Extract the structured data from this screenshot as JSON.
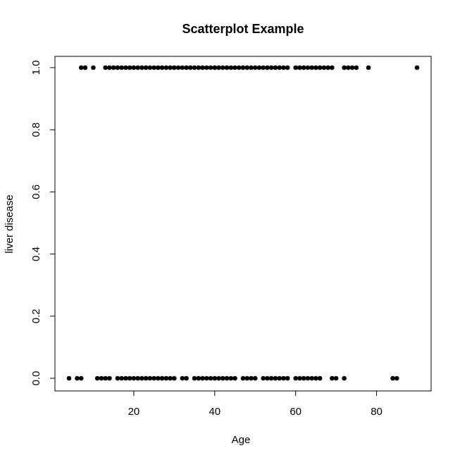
{
  "chart_data": {
    "type": "scatter",
    "title": "Scatterplot Example",
    "xlabel": "Age",
    "ylabel": "liver disease",
    "xlim": [
      4,
      90
    ],
    "ylim": [
      0.0,
      1.0
    ],
    "x_ticks": [
      20,
      40,
      60,
      80
    ],
    "y_ticks": [
      0.0,
      0.2,
      0.4,
      0.6,
      0.8,
      1.0
    ],
    "y_tick_labels": [
      "0.0",
      "0.2",
      "0.4",
      "0.6",
      "0.8",
      "1.0"
    ],
    "grid": false,
    "marker_color": "#000000",
    "points": [
      {
        "x": 7,
        "y": 1
      },
      {
        "x": 8,
        "y": 1
      },
      {
        "x": 10,
        "y": 1
      },
      {
        "x": 13,
        "y": 1
      },
      {
        "x": 14,
        "y": 1
      },
      {
        "x": 15,
        "y": 1
      },
      {
        "x": 16,
        "y": 1
      },
      {
        "x": 17,
        "y": 1
      },
      {
        "x": 18,
        "y": 1
      },
      {
        "x": 19,
        "y": 1
      },
      {
        "x": 20,
        "y": 1
      },
      {
        "x": 21,
        "y": 1
      },
      {
        "x": 22,
        "y": 1
      },
      {
        "x": 23,
        "y": 1
      },
      {
        "x": 24,
        "y": 1
      },
      {
        "x": 25,
        "y": 1
      },
      {
        "x": 26,
        "y": 1
      },
      {
        "x": 27,
        "y": 1
      },
      {
        "x": 28,
        "y": 1
      },
      {
        "x": 29,
        "y": 1
      },
      {
        "x": 30,
        "y": 1
      },
      {
        "x": 31,
        "y": 1
      },
      {
        "x": 32,
        "y": 1
      },
      {
        "x": 33,
        "y": 1
      },
      {
        "x": 34,
        "y": 1
      },
      {
        "x": 35,
        "y": 1
      },
      {
        "x": 36,
        "y": 1
      },
      {
        "x": 37,
        "y": 1
      },
      {
        "x": 38,
        "y": 1
      },
      {
        "x": 39,
        "y": 1
      },
      {
        "x": 40,
        "y": 1
      },
      {
        "x": 41,
        "y": 1
      },
      {
        "x": 42,
        "y": 1
      },
      {
        "x": 43,
        "y": 1
      },
      {
        "x": 44,
        "y": 1
      },
      {
        "x": 45,
        "y": 1
      },
      {
        "x": 46,
        "y": 1
      },
      {
        "x": 47,
        "y": 1
      },
      {
        "x": 48,
        "y": 1
      },
      {
        "x": 49,
        "y": 1
      },
      {
        "x": 50,
        "y": 1
      },
      {
        "x": 51,
        "y": 1
      },
      {
        "x": 52,
        "y": 1
      },
      {
        "x": 53,
        "y": 1
      },
      {
        "x": 54,
        "y": 1
      },
      {
        "x": 55,
        "y": 1
      },
      {
        "x": 56,
        "y": 1
      },
      {
        "x": 57,
        "y": 1
      },
      {
        "x": 58,
        "y": 1
      },
      {
        "x": 60,
        "y": 1
      },
      {
        "x": 61,
        "y": 1
      },
      {
        "x": 62,
        "y": 1
      },
      {
        "x": 63,
        "y": 1
      },
      {
        "x": 64,
        "y": 1
      },
      {
        "x": 65,
        "y": 1
      },
      {
        "x": 66,
        "y": 1
      },
      {
        "x": 67,
        "y": 1
      },
      {
        "x": 68,
        "y": 1
      },
      {
        "x": 69,
        "y": 1
      },
      {
        "x": 72,
        "y": 1
      },
      {
        "x": 73,
        "y": 1
      },
      {
        "x": 74,
        "y": 1
      },
      {
        "x": 75,
        "y": 1
      },
      {
        "x": 78,
        "y": 1
      },
      {
        "x": 90,
        "y": 1
      },
      {
        "x": 4,
        "y": 0
      },
      {
        "x": 6,
        "y": 0
      },
      {
        "x": 7,
        "y": 0
      },
      {
        "x": 11,
        "y": 0
      },
      {
        "x": 12,
        "y": 0
      },
      {
        "x": 13,
        "y": 0
      },
      {
        "x": 14,
        "y": 0
      },
      {
        "x": 16,
        "y": 0
      },
      {
        "x": 17,
        "y": 0
      },
      {
        "x": 18,
        "y": 0
      },
      {
        "x": 19,
        "y": 0
      },
      {
        "x": 20,
        "y": 0
      },
      {
        "x": 21,
        "y": 0
      },
      {
        "x": 22,
        "y": 0
      },
      {
        "x": 23,
        "y": 0
      },
      {
        "x": 24,
        "y": 0
      },
      {
        "x": 25,
        "y": 0
      },
      {
        "x": 26,
        "y": 0
      },
      {
        "x": 27,
        "y": 0
      },
      {
        "x": 28,
        "y": 0
      },
      {
        "x": 29,
        "y": 0
      },
      {
        "x": 30,
        "y": 0
      },
      {
        "x": 32,
        "y": 0
      },
      {
        "x": 33,
        "y": 0
      },
      {
        "x": 35,
        "y": 0
      },
      {
        "x": 36,
        "y": 0
      },
      {
        "x": 37,
        "y": 0
      },
      {
        "x": 38,
        "y": 0
      },
      {
        "x": 39,
        "y": 0
      },
      {
        "x": 40,
        "y": 0
      },
      {
        "x": 41,
        "y": 0
      },
      {
        "x": 42,
        "y": 0
      },
      {
        "x": 43,
        "y": 0
      },
      {
        "x": 44,
        "y": 0
      },
      {
        "x": 45,
        "y": 0
      },
      {
        "x": 47,
        "y": 0
      },
      {
        "x": 48,
        "y": 0
      },
      {
        "x": 49,
        "y": 0
      },
      {
        "x": 50,
        "y": 0
      },
      {
        "x": 52,
        "y": 0
      },
      {
        "x": 53,
        "y": 0
      },
      {
        "x": 54,
        "y": 0
      },
      {
        "x": 55,
        "y": 0
      },
      {
        "x": 56,
        "y": 0
      },
      {
        "x": 57,
        "y": 0
      },
      {
        "x": 58,
        "y": 0
      },
      {
        "x": 60,
        "y": 0
      },
      {
        "x": 61,
        "y": 0
      },
      {
        "x": 62,
        "y": 0
      },
      {
        "x": 63,
        "y": 0
      },
      {
        "x": 64,
        "y": 0
      },
      {
        "x": 65,
        "y": 0
      },
      {
        "x": 66,
        "y": 0
      },
      {
        "x": 69,
        "y": 0
      },
      {
        "x": 70,
        "y": 0
      },
      {
        "x": 72,
        "y": 0
      },
      {
        "x": 84,
        "y": 0
      },
      {
        "x": 85,
        "y": 0
      }
    ]
  }
}
